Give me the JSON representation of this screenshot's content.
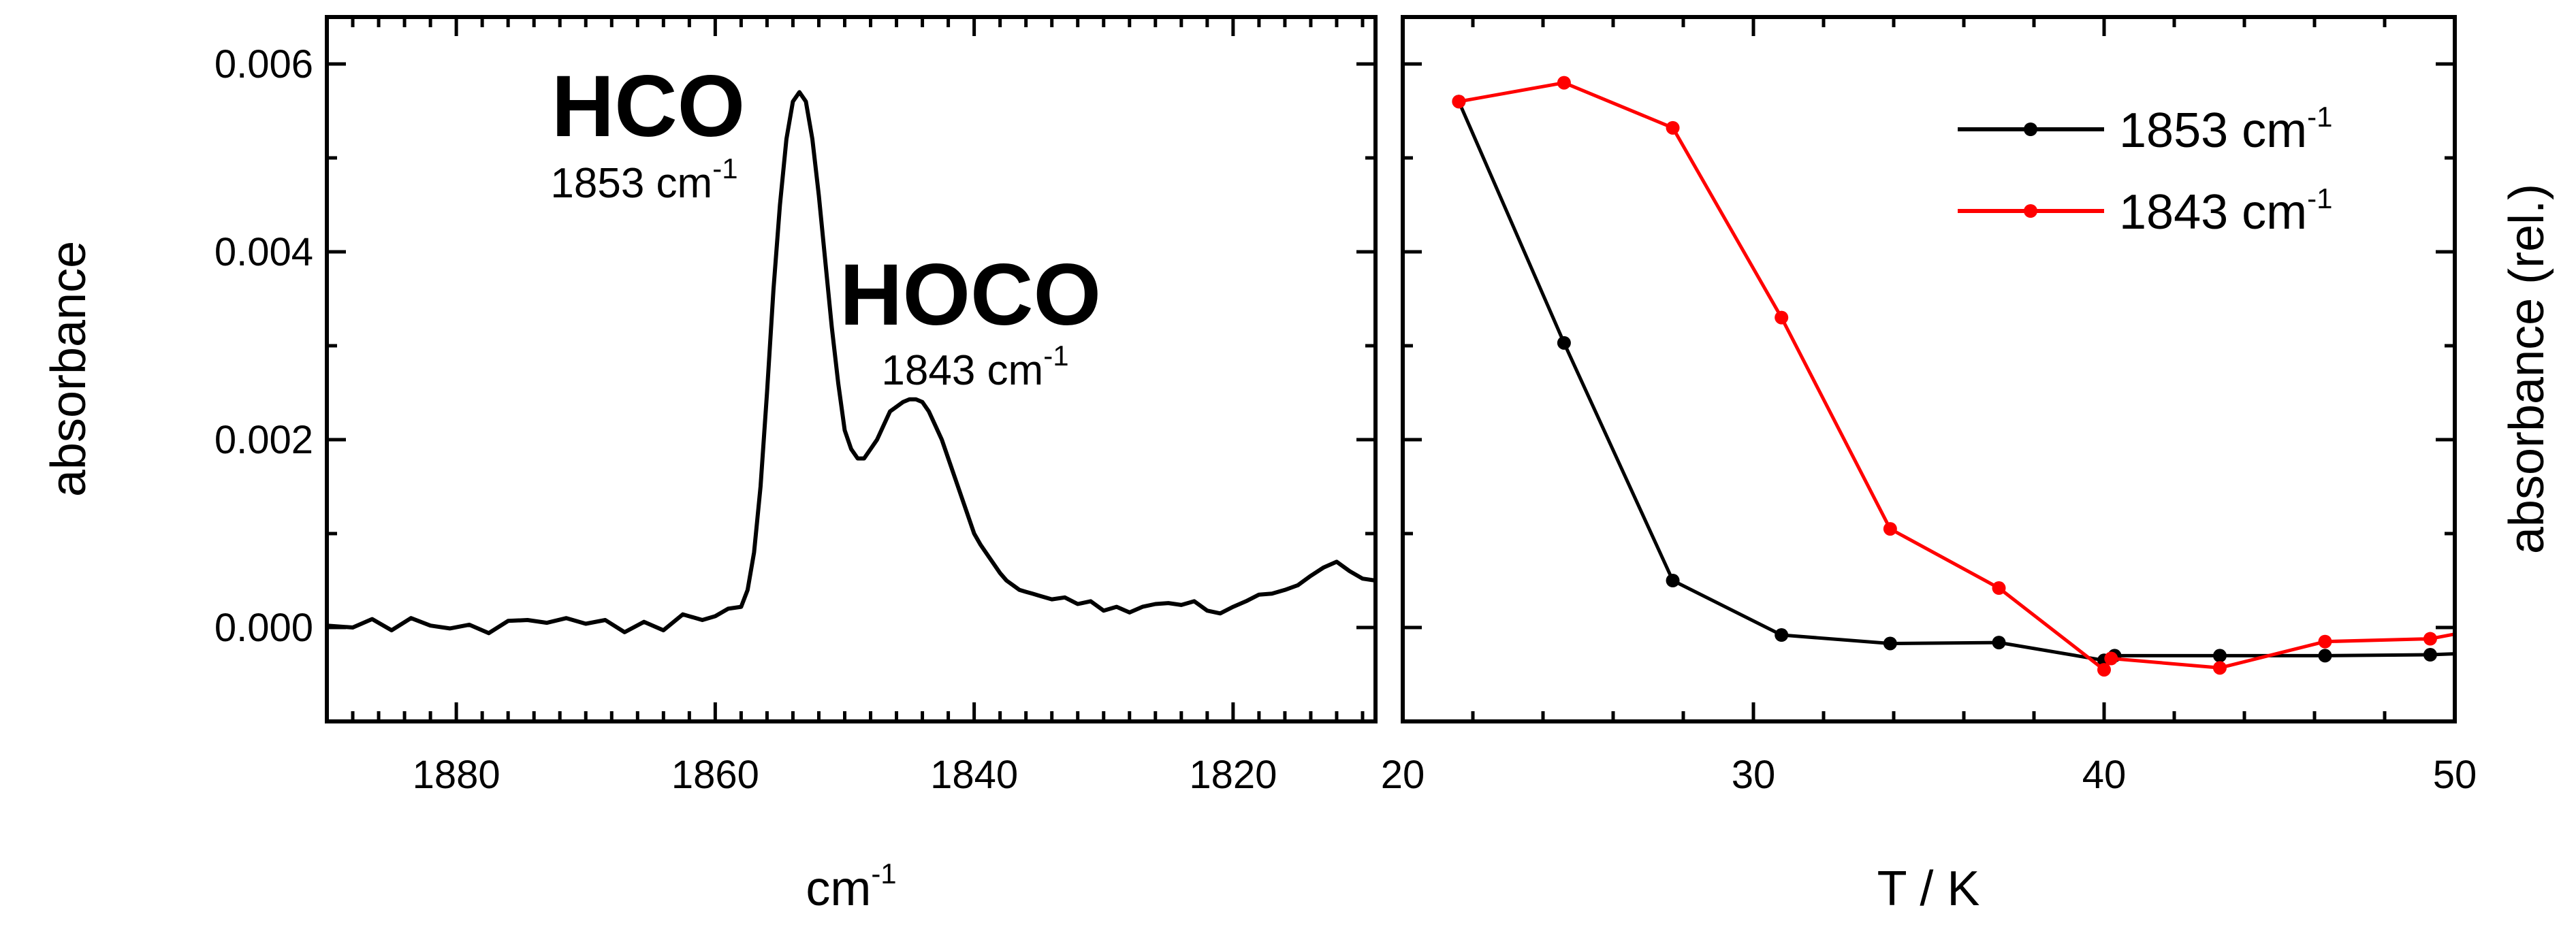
{
  "chart_data": [
    {
      "type": "line",
      "panel": "left",
      "xlabel": "cm",
      "xlabel_sup": "-1",
      "ylabel": "absorbance",
      "xlim": [
        1890,
        1809
      ],
      "ylim": [
        -0.001,
        0.0065
      ],
      "xticks": [
        1880,
        1860,
        1840,
        1820
      ],
      "yticks": [
        0.0,
        0.002,
        0.004,
        0.006
      ],
      "ytick_labels": [
        "0.000",
        "0.002",
        "0.004",
        "0.006"
      ],
      "annotations": [
        {
          "label": "HCO",
          "sublabel": "1853 cm",
          "sup": "-1",
          "x": 1853
        },
        {
          "label": "HOCO",
          "sublabel": "1843 cm",
          "sup": "-1",
          "x": 1843
        }
      ],
      "series": [
        {
          "name": "spectrum",
          "color": "#000000",
          "x": [
            1890,
            1888,
            1886.5,
            1885,
            1883.5,
            1882,
            1880.5,
            1879,
            1877.5,
            1876,
            1874.5,
            1873,
            1871.5,
            1870,
            1868.5,
            1867,
            1865.5,
            1864,
            1862.5,
            1861,
            1860,
            1859,
            1858,
            1857.5,
            1857,
            1856.5,
            1856,
            1855.5,
            1855,
            1854.5,
            1854,
            1853.5,
            1853,
            1852.5,
            1852,
            1851.5,
            1851,
            1850.5,
            1850,
            1849.5,
            1849,
            1848.5,
            1848,
            1847.5,
            1847,
            1846.5,
            1846,
            1845.5,
            1845,
            1844.5,
            1844,
            1843.5,
            1843,
            1842.5,
            1842,
            1841.5,
            1841,
            1840.5,
            1840,
            1839.5,
            1839,
            1838.5,
            1838,
            1837.5,
            1837,
            1836.5,
            1836,
            1835.5,
            1835,
            1834,
            1833,
            1832,
            1831,
            1830,
            1829,
            1828,
            1827,
            1826,
            1825,
            1824,
            1823,
            1822,
            1821,
            1820,
            1819,
            1818,
            1817,
            1816,
            1815,
            1814,
            1813,
            1812,
            1811,
            1810,
            1809
          ],
          "y": [
            2e-05,
            0.0,
            9e-05,
            -3e-05,
            0.0001,
            2e-05,
            -1e-05,
            3e-05,
            -6e-05,
            7e-05,
            8e-05,
            5e-05,
            0.0001,
            4e-05,
            8e-05,
            -5e-05,
            6e-05,
            -3e-05,
            0.00014,
            8e-05,
            0.00012,
            0.0002,
            0.00022,
            0.0004,
            0.0008,
            0.0015,
            0.0025,
            0.0036,
            0.0045,
            0.0052,
            0.0056,
            0.0057,
            0.0056,
            0.0052,
            0.0046,
            0.0039,
            0.0032,
            0.0026,
            0.0021,
            0.0019,
            0.0018,
            0.0018,
            0.0019,
            0.002,
            0.00215,
            0.0023,
            0.00235,
            0.0024,
            0.00243,
            0.00243,
            0.0024,
            0.0023,
            0.00215,
            0.002,
            0.0018,
            0.0016,
            0.0014,
            0.0012,
            0.001,
            0.00088,
            0.00078,
            0.00068,
            0.00058,
            0.0005,
            0.00045,
            0.0004,
            0.00038,
            0.00036,
            0.00034,
            0.0003,
            0.00032,
            0.00025,
            0.00028,
            0.00018,
            0.00022,
            0.00016,
            0.00022,
            0.00025,
            0.00026,
            0.00024,
            0.00028,
            0.00018,
            0.00015,
            0.00022,
            0.00028,
            0.00035,
            0.00036,
            0.0004,
            0.00045,
            0.00055,
            0.00064,
            0.0007,
            0.0006,
            0.00052,
            0.0005
          ]
        }
      ]
    },
    {
      "type": "line",
      "panel": "right",
      "xlabel": "T / K",
      "ylabel": "absorbance (rel.)",
      "xlim": [
        20,
        50
      ],
      "ylim": [
        -0.001,
        0.0065
      ],
      "xticks": [
        20,
        30,
        40,
        50
      ],
      "legend_position": "top-right",
      "series": [
        {
          "name": "1853 cm",
          "sup": "-1",
          "color": "#000000",
          "x": [
            21.6,
            24.6,
            27.7,
            30.8,
            33.9,
            37.0,
            40.0,
            40.3,
            43.3,
            46.3,
            49.3,
            50
          ],
          "y": [
            0.0056,
            0.00303,
            0.0005,
            -8e-05,
            -0.00017,
            -0.00016,
            -0.00035,
            -0.0003,
            -0.0003,
            -0.0003,
            -0.00029,
            -0.00028
          ]
        },
        {
          "name": "1843 cm",
          "sup": "-1",
          "color": "#ff0000",
          "x": [
            21.6,
            24.6,
            27.7,
            30.8,
            33.9,
            37.0,
            40.0,
            40.2,
            43.3,
            46.3,
            49.3,
            50
          ],
          "y": [
            0.0056,
            0.0058,
            0.00532,
            0.0033,
            0.00105,
            0.00042,
            -0.00045,
            -0.00033,
            -0.00043,
            -0.00015,
            -0.00012,
            -7e-05
          ]
        }
      ]
    }
  ]
}
